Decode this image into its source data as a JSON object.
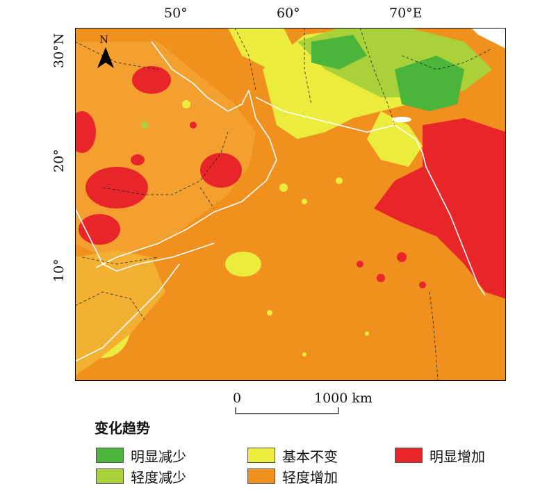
{
  "axes": {
    "top_ticks": [
      "50°",
      "60°",
      "70°E"
    ],
    "left_ticks": [
      "30°N",
      "20°",
      "10°"
    ]
  },
  "north_arrow": {
    "label": "N",
    "icon": "north-arrow-icon"
  },
  "scale_bar": {
    "start": "0",
    "end": "1000 km"
  },
  "legend": {
    "title": "变化趋势",
    "items": [
      {
        "label": "明显减少",
        "color": "#4bb43a"
      },
      {
        "label": "轻度减少",
        "color": "#a9d23a"
      },
      {
        "label": "基本不变",
        "color": "#ecec3e"
      },
      {
        "label": "轻度增加",
        "color": "#f0901e"
      },
      {
        "label": "明显增加",
        "color": "#e8262a"
      }
    ]
  }
}
